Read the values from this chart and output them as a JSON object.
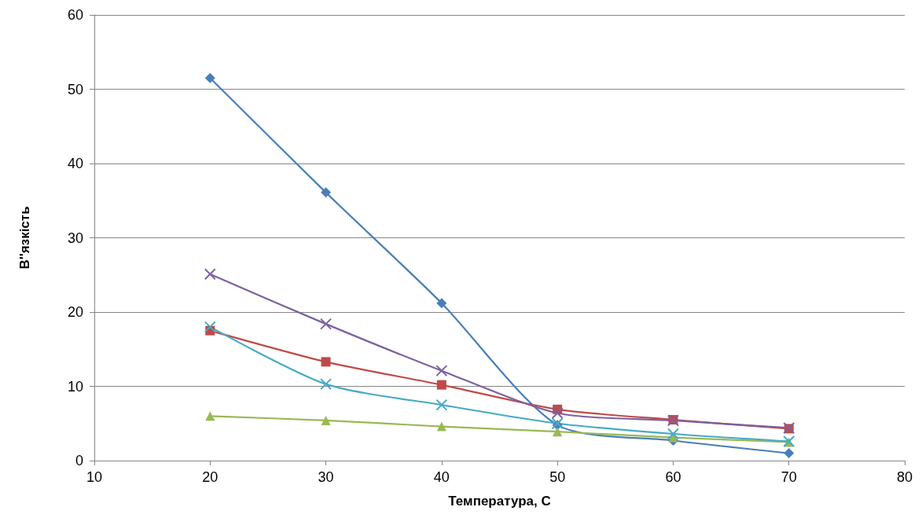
{
  "chart_data": {
    "type": "line",
    "xlabel": "Температура, С",
    "ylabel": "В''язкість",
    "x": [
      20,
      30,
      40,
      50,
      60,
      70
    ],
    "xlim": [
      10,
      80
    ],
    "xticks": [
      10,
      20,
      30,
      40,
      50,
      60,
      70,
      80
    ],
    "ylim": [
      0,
      60
    ],
    "yticks": [
      0,
      10,
      20,
      30,
      40,
      50,
      60
    ],
    "grid": "y",
    "line_style": "solid",
    "series": [
      {
        "color": "#4a7ebb",
        "marker": "diamond",
        "values": [
          51.5,
          36.1,
          21.2,
          4.8,
          2.7,
          1.0
        ]
      },
      {
        "color": "#be4b48",
        "marker": "square",
        "values": [
          17.5,
          13.3,
          10.2,
          6.9,
          5.5,
          4.3
        ]
      },
      {
        "color": "#98b954",
        "marker": "triangle",
        "values": [
          6.0,
          5.4,
          4.6,
          3.9,
          3.1,
          2.5
        ]
      },
      {
        "color": "#7d60a0",
        "marker": "cross",
        "values": [
          25.1,
          18.4,
          12.1,
          6.4,
          5.4,
          4.4
        ]
      },
      {
        "color": "#46aac5",
        "marker": "cross",
        "values": [
          18.0,
          10.3,
          7.5,
          5.0,
          3.6,
          2.6
        ]
      }
    ]
  }
}
